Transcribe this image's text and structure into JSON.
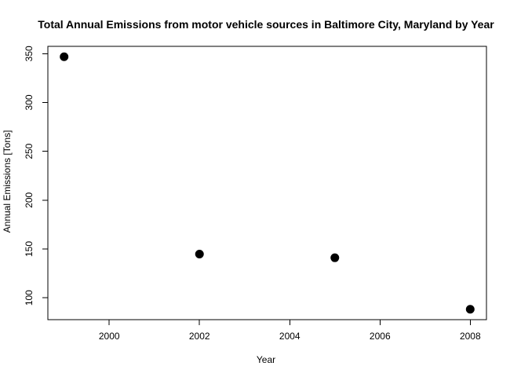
{
  "chart_data": {
    "type": "scatter",
    "title": "Total Annual Emissions from motor vehicle sources in Baltimore City, Maryland by Year",
    "xlabel": "Year",
    "ylabel": "Annual Emissions [Tons]",
    "x": [
      1999,
      2002,
      2005,
      2008
    ],
    "y": [
      346.82,
      144.76,
      140.99,
      88.28
    ],
    "xlim": [
      1998.64,
      2008.36
    ],
    "ylim": [
      77.6,
      357.5
    ],
    "xticks": [
      2000,
      2002,
      2004,
      2006,
      2008
    ],
    "xtick_labels": [
      "2000",
      "2002",
      "2004",
      "2006",
      "2008"
    ],
    "yticks": [
      100,
      150,
      200,
      250,
      300,
      350
    ],
    "ytick_labels": [
      "100",
      "150",
      "200",
      "250",
      "300",
      "350"
    ],
    "grid": false,
    "legend": "none",
    "point_color": "#000000"
  }
}
